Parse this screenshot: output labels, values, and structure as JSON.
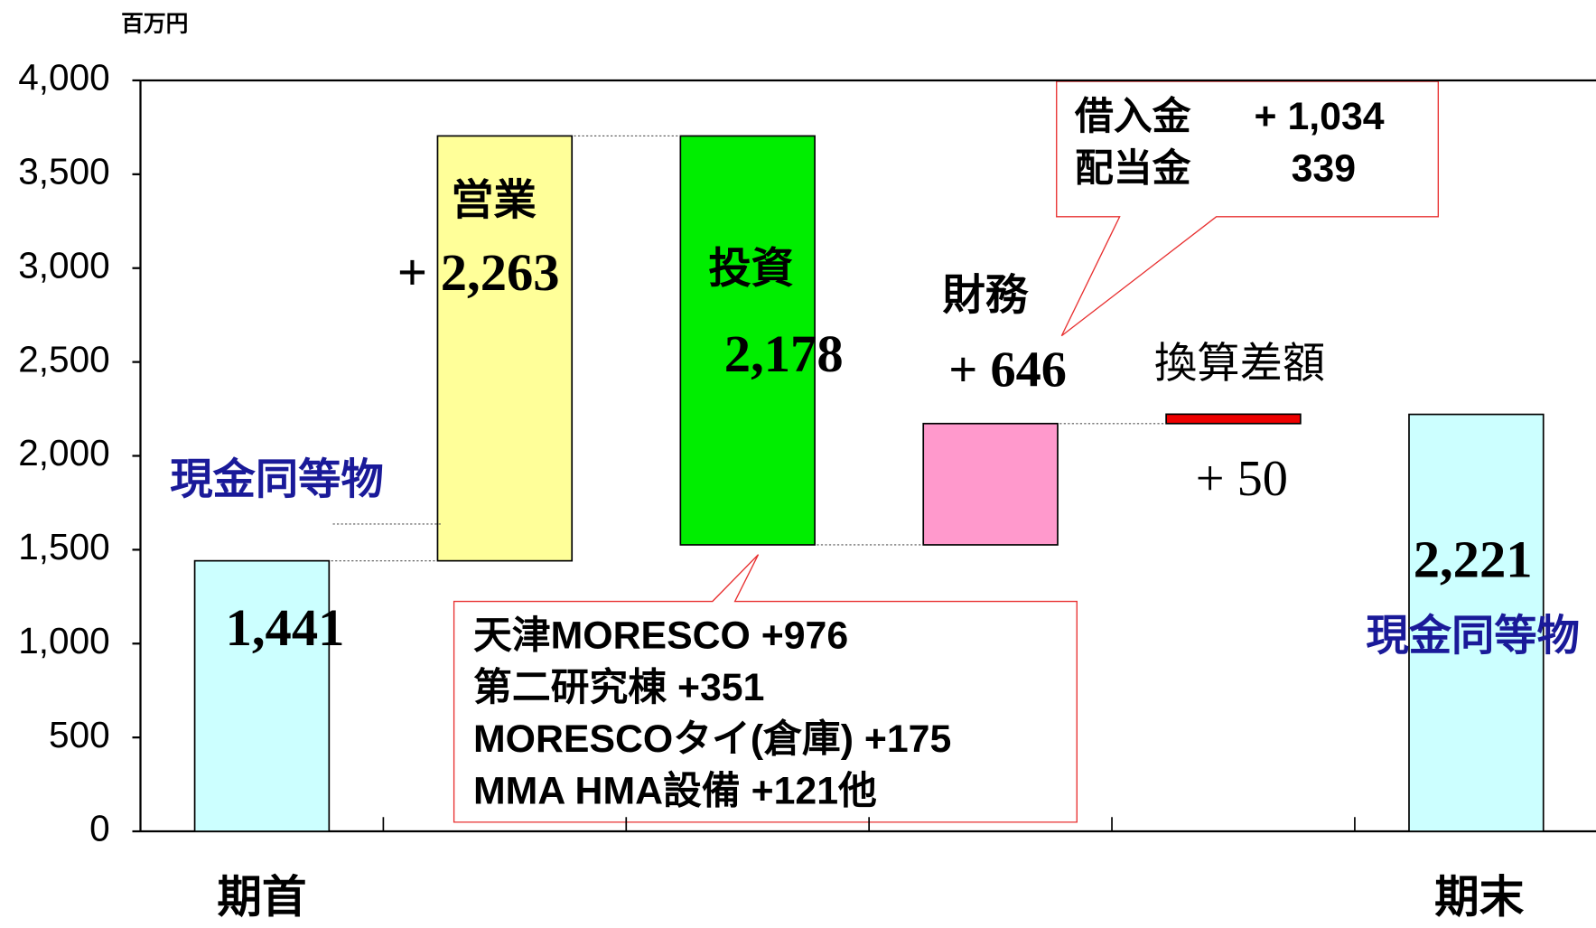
{
  "chart_data": {
    "type": "waterfall",
    "unit_label": "百万円",
    "categories": [
      "期首",
      null,
      null,
      null,
      null,
      "期末"
    ],
    "bar_names": [
      null,
      "営業",
      "投資",
      "財務",
      "換算差額",
      null
    ],
    "values": [
      1441,
      2263,
      -2178,
      646,
      50,
      2221
    ],
    "value_labels": [
      "1,441",
      "+ 2,263",
      "2,178",
      "+ 646",
      "+ 50",
      "2,221"
    ],
    "is_total": [
      true,
      false,
      false,
      false,
      false,
      true
    ],
    "colors": [
      "#ccffff",
      "#ffff99",
      "#00ee00",
      "#ff99cc",
      "#ee0000",
      "#ccffff"
    ],
    "total_label": "現金同等物",
    "ylim": [
      0,
      4000
    ],
    "yticks": [
      0,
      500,
      {
        "value": 1000,
        "label": "1,000"
      },
      {
        "value": 1500,
        "label": "1,500"
      },
      {
        "value": 2000,
        "label": "2,000"
      },
      {
        "value": 2500,
        "label": "2,500"
      },
      {
        "value": 3000,
        "label": "3,000"
      },
      {
        "value": 3500,
        "label": "3,500"
      },
      {
        "value": 4000,
        "label": "4,000"
      }
    ],
    "grid": false,
    "annotations": [
      {
        "lines": [
          "天津MORESCO +976",
          "第二研究棟 +351",
          "MORESCOタイ(倉庫) +175",
          "MMA HMA設備 +121他"
        ]
      },
      {
        "rows": [
          [
            "借入金",
            "+ 1,034"
          ],
          [
            "配当金",
            "339"
          ]
        ]
      }
    ]
  }
}
